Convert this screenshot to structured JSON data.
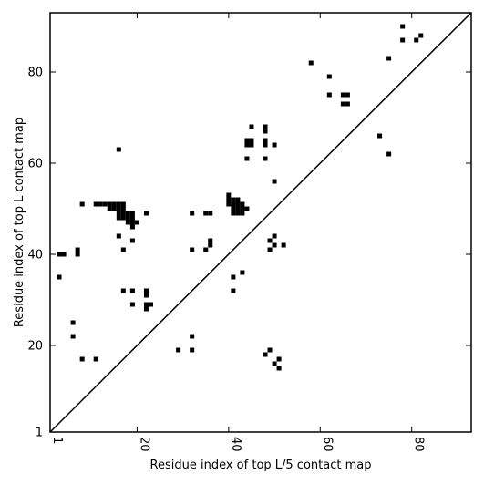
{
  "chart_data": {
    "type": "scatter",
    "title": "",
    "xlabel": "Residue index of top L/5 contact map",
    "ylabel": "Residue index of top L contact map",
    "xlim": [
      1,
      93
    ],
    "ylim": [
      1,
      93
    ],
    "xticks": [
      1,
      20,
      40,
      60,
      80
    ],
    "yticks": [
      1,
      20,
      40,
      60,
      80
    ],
    "diagonal": true,
    "grid": false,
    "marker": "square",
    "marker_color": "#000000",
    "points": [
      [
        3,
        40
      ],
      [
        4,
        40
      ],
      [
        3,
        35
      ],
      [
        7,
        41
      ],
      [
        7,
        40
      ],
      [
        8,
        51
      ],
      [
        6,
        25
      ],
      [
        6,
        22
      ],
      [
        8,
        17
      ],
      [
        11,
        17
      ],
      [
        11,
        51
      ],
      [
        12,
        51
      ],
      [
        13,
        51
      ],
      [
        14,
        51
      ],
      [
        15,
        51
      ],
      [
        16,
        51
      ],
      [
        17,
        51
      ],
      [
        14,
        50
      ],
      [
        15,
        50
      ],
      [
        16,
        50
      ],
      [
        17,
        50
      ],
      [
        16,
        49
      ],
      [
        17,
        49
      ],
      [
        18,
        49
      ],
      [
        19,
        49
      ],
      [
        16,
        48
      ],
      [
        17,
        48
      ],
      [
        18,
        48
      ],
      [
        19,
        48
      ],
      [
        18,
        47
      ],
      [
        19,
        47
      ],
      [
        20,
        47
      ],
      [
        19,
        46
      ],
      [
        16,
        63
      ],
      [
        16,
        44
      ],
      [
        19,
        43
      ],
      [
        17,
        41
      ],
      [
        22,
        49
      ],
      [
        17,
        32
      ],
      [
        19,
        32
      ],
      [
        19,
        29
      ],
      [
        22,
        32
      ],
      [
        22,
        31
      ],
      [
        22,
        29
      ],
      [
        22,
        28
      ],
      [
        23,
        29
      ],
      [
        29,
        19
      ],
      [
        32,
        19
      ],
      [
        32,
        22
      ],
      [
        32,
        49
      ],
      [
        32,
        41
      ],
      [
        35,
        49
      ],
      [
        36,
        49
      ],
      [
        35,
        41
      ],
      [
        36,
        42
      ],
      [
        36,
        43
      ],
      [
        40,
        53
      ],
      [
        40,
        52
      ],
      [
        41,
        52
      ],
      [
        42,
        52
      ],
      [
        40,
        51
      ],
      [
        41,
        51
      ],
      [
        42,
        51
      ],
      [
        43,
        51
      ],
      [
        41,
        50
      ],
      [
        42,
        50
      ],
      [
        43,
        50
      ],
      [
        44,
        50
      ],
      [
        41,
        49
      ],
      [
        42,
        49
      ],
      [
        43,
        49
      ],
      [
        41,
        35
      ],
      [
        41,
        32
      ],
      [
        43,
        36
      ],
      [
        44,
        65
      ],
      [
        45,
        65
      ],
      [
        44,
        64
      ],
      [
        45,
        64
      ],
      [
        45,
        68
      ],
      [
        44,
        61
      ],
      [
        48,
        68
      ],
      [
        48,
        67
      ],
      [
        48,
        65
      ],
      [
        48,
        64
      ],
      [
        48,
        61
      ],
      [
        50,
        64
      ],
      [
        49,
        43
      ],
      [
        49,
        41
      ],
      [
        50,
        44
      ],
      [
        50,
        42
      ],
      [
        52,
        42
      ],
      [
        50,
        56
      ],
      [
        48,
        18
      ],
      [
        49,
        19
      ],
      [
        50,
        16
      ],
      [
        51,
        17
      ],
      [
        51,
        15
      ],
      [
        58,
        82
      ],
      [
        62,
        79
      ],
      [
        62,
        75
      ],
      [
        65,
        75
      ],
      [
        66,
        75
      ],
      [
        65,
        73
      ],
      [
        66,
        73
      ],
      [
        73,
        66
      ],
      [
        75,
        62
      ],
      [
        75,
        83
      ],
      [
        78,
        90
      ],
      [
        78,
        87
      ],
      [
        81,
        87
      ],
      [
        82,
        88
      ]
    ]
  }
}
